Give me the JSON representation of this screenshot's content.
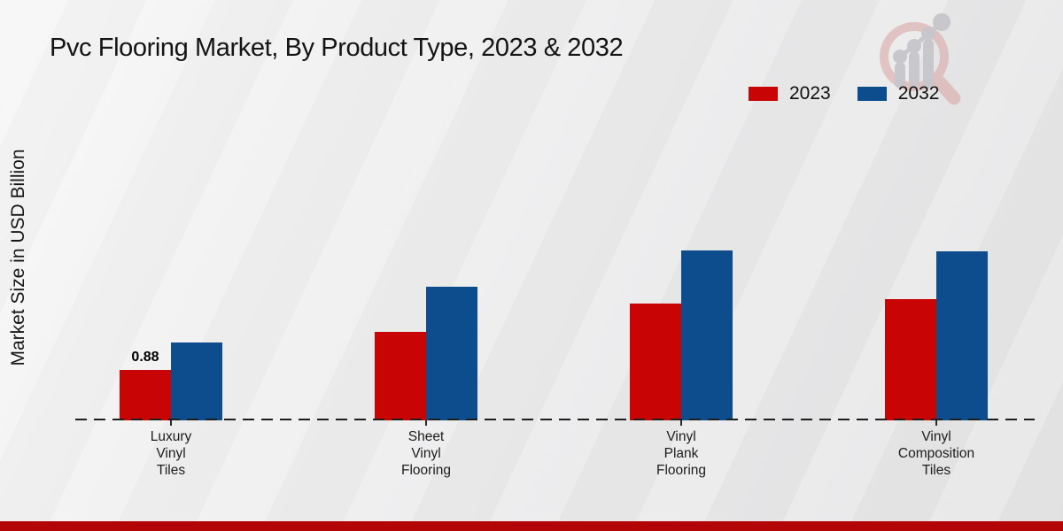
{
  "chart_data": {
    "type": "bar",
    "title": "Pvc Flooring Market, By Product Type, 2023 & 2032",
    "ylabel": "Market Size in USD Billion",
    "categories": [
      "Luxury\nVinyl\nTiles",
      "Sheet\nVinyl\nFlooring",
      "Vinyl\nPlank\nFlooring",
      "Vinyl\nComposition\nTiles"
    ],
    "series": [
      {
        "name": "2023",
        "color": "#c80404",
        "values": [
          0.88,
          1.54,
          2.04,
          2.12
        ]
      },
      {
        "name": "2032",
        "color": "#0d4d8e",
        "values": [
          1.36,
          2.33,
          2.96,
          2.95
        ]
      }
    ],
    "annotations": [
      {
        "text": "0.88",
        "series_index": 0,
        "category_index": 0
      }
    ],
    "ylim": [
      0,
      3.2
    ],
    "grid": false,
    "legend_position": "top-right",
    "baseline_style": "dashed"
  },
  "colors": {
    "accent_red": "#c80404",
    "accent_blue": "#0d4d8e",
    "footer_stripe": "#b30505",
    "text": "#161616"
  }
}
